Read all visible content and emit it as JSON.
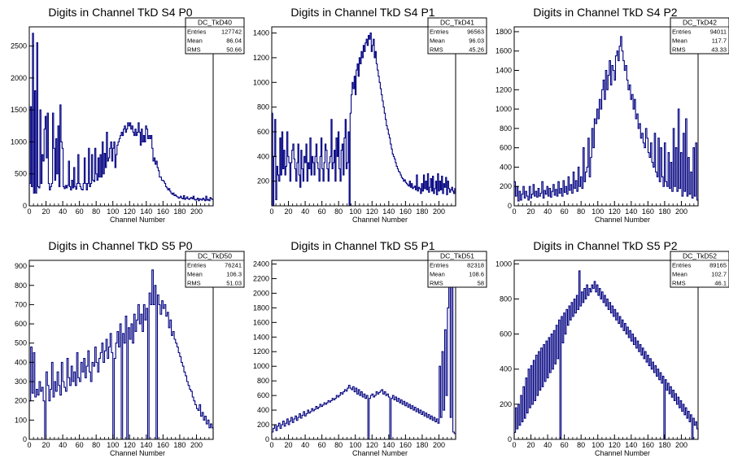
{
  "xaxis_label": "Channel Number",
  "chart_data": [
    {
      "type": "histogram",
      "title": "Digits in Channel TkD S4 P0",
      "xlabel": "Channel Number",
      "ylabel": "",
      "xlim": [
        0,
        220
      ],
      "ylim": [
        0,
        2800
      ],
      "xticks": [
        0,
        20,
        40,
        60,
        80,
        100,
        120,
        140,
        160,
        180,
        200
      ],
      "yticks": [
        0,
        500,
        1000,
        1500,
        2000,
        2500
      ],
      "stats": {
        "name": "DC_TkD40",
        "rows": [
          [
            "Entries",
            "127742"
          ],
          [
            "Mean",
            "86.04"
          ],
          [
            "RMS",
            "50.66"
          ]
        ]
      },
      "values": [
        350,
        1550,
        300,
        2700,
        200,
        1800,
        200,
        2550,
        300,
        280,
        1500,
        350,
        800,
        700,
        1200,
        1400,
        750,
        1450,
        350,
        250,
        300,
        350,
        1450,
        900,
        400,
        1050,
        500,
        1250,
        300,
        1580,
        1000,
        900,
        300,
        270,
        320,
        280,
        320,
        700,
        300,
        250,
        400,
        280,
        600,
        300,
        260,
        350,
        800,
        350,
        300,
        260,
        250,
        350,
        750,
        350,
        250,
        350,
        900,
        300,
        350,
        800,
        400,
        380,
        900,
        500,
        400,
        750,
        450,
        800,
        450,
        1000,
        500,
        820,
        600,
        1150,
        700,
        750,
        900,
        1000,
        700,
        900,
        1000,
        600,
        800,
        950,
        1000,
        1050,
        1100,
        1150,
        1100,
        1200,
        1250,
        1150,
        1200,
        1300,
        1250,
        1300,
        1200,
        1250,
        1150,
        1100,
        1200,
        1100,
        1150,
        1300,
        1150,
        950,
        1200,
        1000,
        1100,
        1000,
        1250,
        1200,
        1050,
        1100,
        1050,
        1100,
        900,
        700,
        750,
        650,
        700,
        600,
        550,
        450,
        450,
        400,
        400,
        380,
        350,
        300,
        280,
        250,
        270,
        230,
        200,
        180,
        200,
        160,
        170,
        150,
        140,
        120,
        130,
        150,
        120,
        110,
        160,
        100,
        120,
        140,
        110,
        100,
        120,
        130,
        110,
        150,
        100,
        90,
        100,
        120,
        80,
        110,
        100,
        90,
        120,
        100,
        80,
        150,
        90,
        100,
        80,
        130,
        110,
        100
      ]
    },
    {
      "type": "histogram",
      "title": "Digits in Channel TkD S4 P1",
      "xlabel": "Channel Number",
      "ylabel": "",
      "xlim": [
        0,
        220
      ],
      "ylim": [
        0,
        1450
      ],
      "xticks": [
        0,
        20,
        40,
        60,
        80,
        100,
        120,
        140,
        160,
        180,
        200
      ],
      "yticks": [
        200,
        400,
        600,
        800,
        1000,
        1200,
        1400
      ],
      "stats": {
        "name": "DC_TkD41",
        "rows": [
          [
            "Entries",
            "96563"
          ],
          [
            "Mean",
            "96.03"
          ],
          [
            "RMS",
            "45.26"
          ]
        ]
      },
      "values": [
        750,
        0,
        400,
        700,
        50,
        320,
        250,
        200,
        550,
        250,
        600,
        300,
        450,
        250,
        320,
        600,
        400,
        350,
        200,
        350,
        450,
        500,
        380,
        300,
        200,
        350,
        500,
        250,
        150,
        450,
        300,
        200,
        400,
        350,
        500,
        200,
        350,
        300,
        550,
        250,
        400,
        350,
        250,
        400,
        500,
        350,
        300,
        200,
        400,
        550,
        300,
        200,
        350,
        500,
        450,
        300,
        200,
        350,
        400,
        700,
        300,
        350,
        450,
        200,
        550,
        400,
        600,
        300,
        200,
        450,
        500,
        250,
        550,
        700,
        300,
        350,
        600,
        0,
        750,
        900,
        1000,
        950,
        1050,
        900,
        1100,
        1150,
        1050,
        1200,
        1150,
        1250,
        1200,
        1300,
        1250,
        1320,
        1350,
        1300,
        1380,
        1350,
        1400,
        1250,
        1300,
        1350,
        1200,
        1250,
        1150,
        1100,
        1050,
        1000,
        950,
        900,
        850,
        800,
        750,
        700,
        650,
        620,
        580,
        550,
        500,
        460,
        420,
        400,
        380,
        350,
        320,
        300,
        280,
        270,
        250,
        230,
        220,
        200,
        210,
        190,
        180,
        170,
        160,
        200,
        150,
        180,
        140,
        150,
        160,
        130,
        250,
        120,
        150,
        140,
        100,
        180,
        120,
        250,
        140,
        200,
        130,
        260,
        110,
        150,
        220,
        120,
        240,
        100,
        140,
        200,
        90,
        260,
        120,
        200,
        130,
        240,
        100,
        180,
        150,
        230,
        90,
        200,
        140,
        110,
        130,
        150,
        120,
        100,
        140
      ]
    },
    {
      "type": "histogram",
      "title": "Digits in Channel TkD S4 P2",
      "xlabel": "Channel Number",
      "ylabel": "",
      "xlim": [
        0,
        220
      ],
      "ylim": [
        0,
        1850
      ],
      "xticks": [
        0,
        20,
        40,
        60,
        80,
        100,
        120,
        140,
        160,
        180,
        200
      ],
      "yticks": [
        0,
        200,
        400,
        600,
        800,
        1000,
        1200,
        1400,
        1600,
        1800
      ],
      "stats": {
        "name": "DC_TkD42",
        "rows": [
          [
            "Entries",
            "94011"
          ],
          [
            "Mean",
            "117.7"
          ],
          [
            "RMS",
            "43.33"
          ]
        ]
      },
      "values": [
        250,
        100,
        200,
        50,
        150,
        60,
        120,
        200,
        80,
        150,
        100,
        60,
        200,
        80,
        120,
        220,
        100,
        150,
        90,
        180,
        100,
        130,
        250,
        80,
        160,
        120,
        200,
        100,
        180,
        90,
        150,
        220,
        110,
        170,
        100,
        250,
        130,
        180,
        100,
        260,
        140,
        200,
        120,
        300,
        160,
        220,
        130,
        350,
        180,
        260,
        150,
        400,
        200,
        300,
        180,
        600,
        250,
        350,
        400,
        700,
        300,
        500,
        800,
        600,
        900,
        850,
        1000,
        900,
        1100,
        1000,
        1200,
        1300,
        1100,
        1400,
        1200,
        1350,
        1500,
        1250,
        1450,
        1400,
        1300,
        1550,
        1600,
        1500,
        1650,
        1750,
        1600,
        1500,
        1400,
        1450,
        1300,
        1200,
        1250,
        1100,
        1150,
        1000,
        1100,
        900,
        950,
        800,
        850,
        700,
        750,
        650,
        600,
        800,
        700,
        550,
        500,
        650,
        450,
        400,
        750,
        350,
        300,
        700,
        250,
        600,
        300,
        200,
        650,
        250,
        200,
        550,
        180,
        450,
        150,
        800,
        200,
        600,
        150,
        1000,
        180,
        550,
        100,
        750,
        150,
        900,
        100,
        500,
        120,
        350,
        80,
        600,
        100,
        650,
        60
      ]
    },
    {
      "type": "histogram",
      "title": "Digits in Channel TkD S5 P0",
      "xlabel": "Channel Number",
      "ylabel": "",
      "xlim": [
        0,
        220
      ],
      "ylim": [
        0,
        930
      ],
      "xticks": [
        0,
        20,
        40,
        60,
        80,
        100,
        120,
        140,
        160,
        180,
        200
      ],
      "yticks": [
        0,
        100,
        200,
        300,
        400,
        500,
        600,
        700,
        800,
        900
      ],
      "stats": {
        "name": "DC_TkD50",
        "rows": [
          [
            "Entries",
            "76241"
          ],
          [
            "Mean",
            "106.3"
          ],
          [
            "RMS",
            "51.03"
          ]
        ]
      },
      "values": [
        200,
        480,
        240,
        450,
        220,
        260,
        230,
        300,
        250,
        270,
        200,
        0,
        350,
        280,
        200,
        260,
        400,
        220,
        300,
        250,
        350,
        280,
        230,
        400,
        300,
        270,
        250,
        420,
        320,
        280,
        380,
        300,
        350,
        280,
        450,
        320,
        300,
        400,
        350,
        420,
        320,
        380,
        460,
        350,
        300,
        400,
        380,
        480,
        400,
        350,
        420,
        450,
        500,
        400,
        460,
        520,
        420,
        480,
        550,
        450,
        0,
        420,
        500,
        560,
        480,
        600,
        0,
        550,
        500,
        640,
        0,
        580,
        520,
        600,
        500,
        650,
        560,
        620,
        700,
        600,
        650,
        560,
        700,
        620,
        680,
        0,
        760,
        700,
        880,
        700,
        800,
        0,
        750,
        700,
        650,
        720,
        680,
        700,
        640,
        660,
        580,
        620,
        540,
        560,
        520,
        500,
        480,
        450,
        430,
        400,
        380,
        350,
        330,
        300,
        280,
        260,
        250,
        220,
        200,
        180,
        160,
        150,
        180,
        120,
        140,
        100,
        120,
        80,
        100,
        60,
        80,
        60
      ]
    },
    {
      "type": "histogram",
      "title": "Digits in Channel TkD S5 P1",
      "xlabel": "Channel Number",
      "ylabel": "",
      "xlim": [
        0,
        220
      ],
      "ylim": [
        0,
        2450
      ],
      "xticks": [
        0,
        20,
        40,
        60,
        80,
        100,
        120,
        140,
        160,
        180,
        200
      ],
      "yticks": [
        0,
        200,
        400,
        600,
        800,
        1000,
        1200,
        1400,
        1600,
        1800,
        2000,
        2200,
        2400
      ],
      "stats": {
        "name": "DC_TkD51",
        "rows": [
          [
            "Entries",
            "82318"
          ],
          [
            "Mean",
            "108.6"
          ],
          [
            "RMS",
            "58"
          ]
        ]
      },
      "values": [
        100,
        150,
        200,
        120,
        180,
        220,
        150,
        200,
        250,
        180,
        220,
        280,
        200,
        250,
        300,
        230,
        280,
        320,
        260,
        300,
        350,
        290,
        330,
        380,
        320,
        350,
        400,
        360,
        380,
        420,
        390,
        410,
        450,
        420,
        440,
        480,
        450,
        470,
        500,
        480,
        500,
        530,
        510,
        530,
        560,
        540,
        560,
        600,
        580,
        600,
        640,
        620,
        650,
        680,
        660,
        700,
        740,
        700,
        680,
        720,
        650,
        700,
        620,
        680,
        600,
        650,
        580,
        620,
        560,
        600,
        0,
        560,
        600,
        620,
        580,
        600,
        650,
        620,
        640,
        660,
        680,
        620,
        650,
        600,
        620,
        580,
        0,
        560,
        600,
        540,
        580,
        520,
        560,
        500,
        540,
        480,
        520,
        460,
        500,
        440,
        480,
        420,
        460,
        400,
        440,
        380,
        420,
        360,
        400,
        340,
        380,
        320,
        360,
        300,
        340,
        280,
        320,
        260,
        300,
        240,
        280,
        220,
        1000,
        300,
        1200,
        400,
        1500,
        600,
        1800,
        2100,
        300,
        2300,
        100,
        80
      ]
    },
    {
      "type": "histogram",
      "title": "Digits in Channel TkD S5 P2",
      "xlabel": "Channel Number",
      "ylabel": "",
      "xlim": [
        0,
        220
      ],
      "ylim": [
        0,
        1020
      ],
      "xticks": [
        0,
        20,
        40,
        60,
        80,
        100,
        120,
        140,
        160,
        180,
        200
      ],
      "yticks": [
        0,
        200,
        400,
        600,
        800,
        1000
      ],
      "stats": {
        "name": "DC_TkD52",
        "rows": [
          [
            "Entries",
            "89165"
          ],
          [
            "Mean",
            "102.7"
          ],
          [
            "RMS",
            "46.1"
          ]
        ]
      },
      "values": [
        40,
        180,
        60,
        200,
        80,
        250,
        100,
        300,
        120,
        350,
        150,
        400,
        180,
        420,
        200,
        450,
        220,
        480,
        250,
        500,
        280,
        520,
        300,
        540,
        330,
        560,
        350,
        580,
        380,
        600,
        400,
        620,
        430,
        650,
        460,
        680,
        0,
        700,
        550,
        720,
        600,
        740,
        650,
        760,
        680,
        780,
        700,
        800,
        720,
        820,
        740,
        960,
        760,
        840,
        780,
        860,
        800,
        880,
        820,
        860,
        840,
        880,
        860,
        900,
        840,
        880,
        820,
        860,
        800,
        840,
        780,
        820,
        760,
        800,
        740,
        780,
        720,
        760,
        700,
        740,
        680,
        720,
        660,
        700,
        640,
        680,
        620,
        660,
        600,
        640,
        580,
        620,
        560,
        600,
        540,
        580,
        520,
        560,
        500,
        540,
        480,
        520,
        460,
        500,
        440,
        480,
        420,
        460,
        400,
        440,
        380,
        420,
        360,
        400,
        340,
        380,
        320,
        360,
        0,
        340,
        280,
        320,
        260,
        300,
        240,
        280,
        220,
        260,
        200,
        240,
        180,
        220,
        160,
        200,
        140,
        180,
        120,
        160,
        100,
        140,
        0,
        120,
        80,
        100,
        60
      ]
    }
  ]
}
